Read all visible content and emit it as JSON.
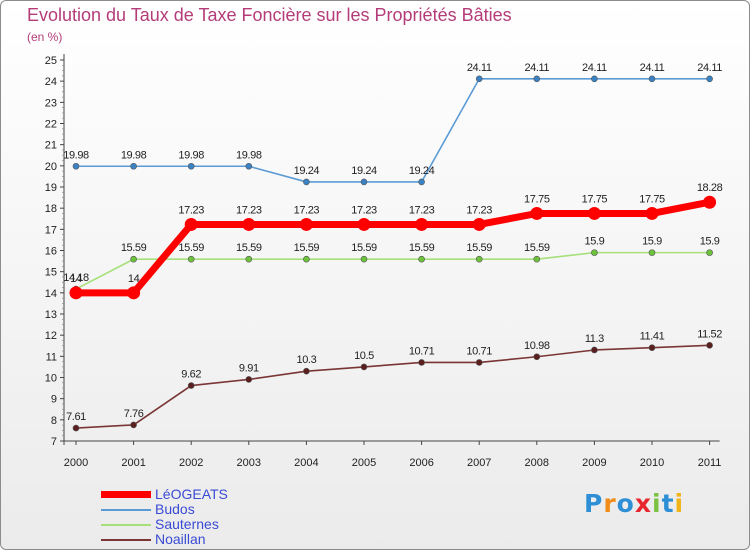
{
  "title": "Evolution du Taux de Taxe Foncière sur les Propriétés Bâties",
  "unit_label": "(en %)",
  "logo": "Proxiti",
  "chart_data": {
    "type": "line",
    "title": "Evolution du Taux de Taxe Foncière sur les Propriétés Bâties",
    "ylabel": "(en %)",
    "xlabel": "",
    "x": [
      "2000",
      "2001",
      "2002",
      "2003",
      "2004",
      "2005",
      "2006",
      "2007",
      "2008",
      "2009",
      "2010",
      "2011"
    ],
    "yticks": [
      "7",
      "8",
      "9",
      "10",
      "11",
      "12",
      "13",
      "14",
      "15",
      "16",
      "17",
      "18",
      "19",
      "20",
      "21",
      "22",
      "23",
      "24",
      "25"
    ],
    "ylim": [
      7,
      25
    ],
    "grid": false,
    "legend_position": "bottom-left",
    "series": [
      {
        "name": "Budos",
        "color": "#5b9bd5",
        "marker": "#3a82c4",
        "values": [
          19.98,
          19.98,
          19.98,
          19.98,
          19.24,
          19.24,
          19.24,
          24.11,
          24.11,
          24.11,
          24.11,
          24.11
        ],
        "labels": [
          "19.98",
          "19.98",
          "19.98",
          "19.98",
          "19.24",
          "19.24",
          "19.24",
          "24.11",
          "24.11",
          "24.11",
          "24.11",
          "24.11"
        ]
      },
      {
        "name": "Sauternes",
        "color": "#a6e07a",
        "marker": "#6cc23a",
        "values": [
          14.18,
          15.59,
          15.59,
          15.59,
          15.59,
          15.59,
          15.59,
          15.59,
          15.59,
          15.9,
          15.9,
          15.9
        ],
        "labels": [
          "14.18",
          "15.59",
          "15.59",
          "15.59",
          "15.59",
          "15.59",
          "15.59",
          "15.59",
          "15.59",
          "15.9",
          "15.9",
          "15.9"
        ]
      },
      {
        "name": "Noaillan",
        "color": "#7a3535",
        "marker": "#5a1e1e",
        "values": [
          7.61,
          7.76,
          9.62,
          9.91,
          10.3,
          10.5,
          10.71,
          10.71,
          10.98,
          11.3,
          11.41,
          11.52
        ],
        "labels": [
          "7.61",
          "7.76",
          "9.62",
          "9.91",
          "10.3",
          "10.5",
          "10.71",
          "10.71",
          "10.98",
          "11.3",
          "11.41",
          "11.52"
        ]
      },
      {
        "name": "LéOGEATS",
        "color": "#ff0000",
        "marker": "#ff0000",
        "highlight": true,
        "values": [
          14,
          14,
          17.23,
          17.23,
          17.23,
          17.23,
          17.23,
          17.23,
          17.75,
          17.75,
          17.75,
          18.28
        ],
        "labels": [
          "14",
          "14",
          "17.23",
          "17.23",
          "17.23",
          "17.23",
          "17.23",
          "17.23",
          "17.75",
          "17.75",
          "17.75",
          "18.28"
        ]
      }
    ],
    "legend": [
      {
        "name": "LéOGEATS",
        "color": "#ff0000"
      },
      {
        "name": "Budos",
        "color": "#5b9bd5"
      },
      {
        "name": "Sauternes",
        "color": "#a6e07a"
      },
      {
        "name": "Noaillan",
        "color": "#7a3535"
      }
    ]
  }
}
